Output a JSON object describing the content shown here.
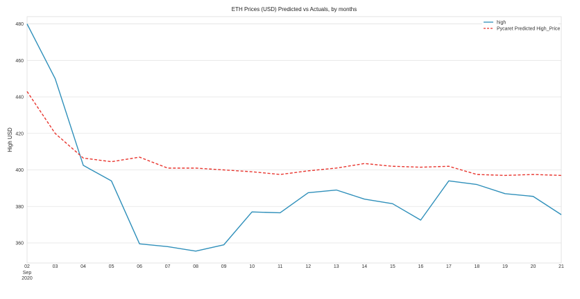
{
  "chart_data": {
    "type": "line",
    "title": "ETH Prices (USD) Predicted vs Actuals, by months",
    "xlabel": "",
    "ylabel": "High USD",
    "x": [
      "02",
      "03",
      "04",
      "05",
      "06",
      "07",
      "08",
      "09",
      "10",
      "11",
      "12",
      "13",
      "14",
      "15",
      "16",
      "17",
      "18",
      "19",
      "20",
      "21"
    ],
    "x_sublabel": [
      "Sep",
      "2020"
    ],
    "yticks": [
      360,
      380,
      400,
      420,
      440,
      460,
      480
    ],
    "ylim": [
      349,
      484
    ],
    "grid": true,
    "legend_position": "top-right",
    "series": [
      {
        "name": "high",
        "color": "#2e8fba",
        "style": "solid",
        "values": [
          480,
          450,
          402.5,
          394,
          359.5,
          358,
          355.5,
          359,
          377,
          376.5,
          387.5,
          389,
          384,
          381.5,
          372.5,
          394,
          392,
          387,
          385.5,
          375.5
        ]
      },
      {
        "name": "Pycaret Predicted High_Price",
        "color": "#e8352e",
        "style": "dashed",
        "values": [
          443,
          420,
          406.5,
          404.5,
          407,
          401,
          401,
          400,
          399,
          397.5,
          399.5,
          401,
          403.5,
          402,
          401.5,
          402,
          397.5,
          397,
          397.5,
          397
        ]
      }
    ]
  }
}
